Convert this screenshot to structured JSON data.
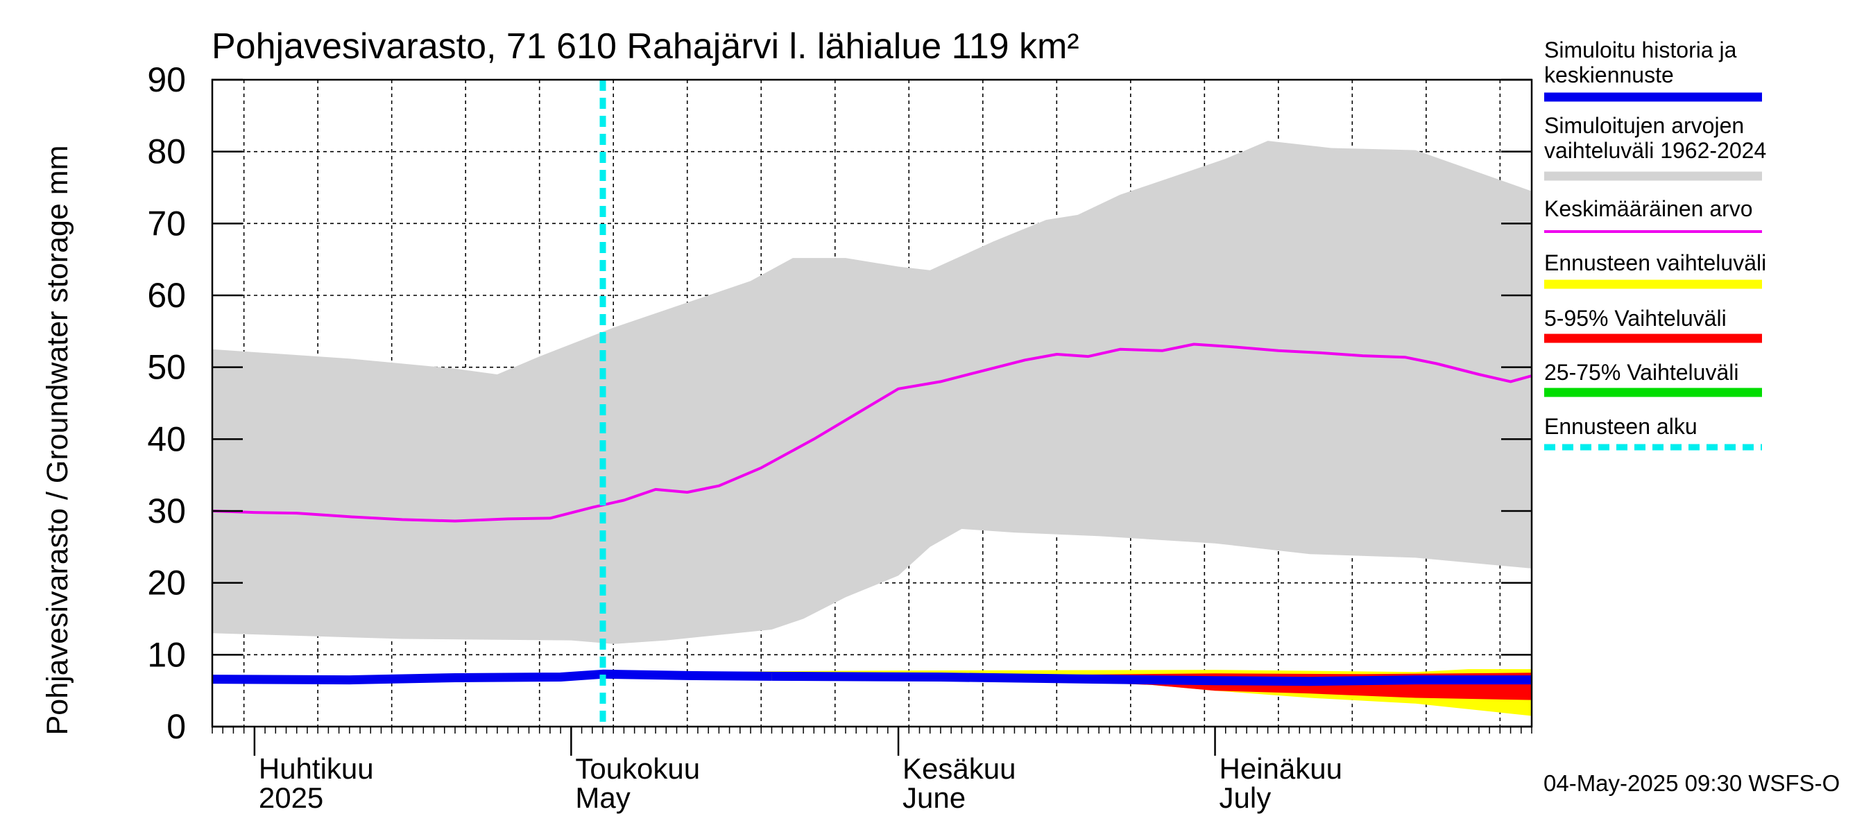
{
  "chart_data": {
    "type": "area",
    "title": "Pohjavesivarasto, 71 610 Rahajärvi l. lähialue 119 km²",
    "ylabel": "Pohjavesivarasto / Groundwater storage   mm",
    "ylim": [
      0,
      90
    ],
    "yticks": [
      0,
      10,
      20,
      30,
      40,
      50,
      60,
      70,
      80,
      90
    ],
    "xlim": [
      "2025-03-28",
      "2025-07-31"
    ],
    "month_labels": [
      {
        "date": "2025-04-01",
        "line1": "Huhtikuu",
        "line2": "2025"
      },
      {
        "date": "2025-05-01",
        "line1": "Toukokuu",
        "line2": "May"
      },
      {
        "date": "2025-06-01",
        "line1": "Kesäkuu",
        "line2": "June"
      },
      {
        "date": "2025-07-01",
        "line1": "Heinäkuu",
        "line2": "July"
      }
    ],
    "grid": true,
    "legend_position": "right",
    "forecast_start": "2025-05-04",
    "footer": "04-May-2025 09:30 WSFS-O",
    "colors": {
      "history": "#0000ee",
      "range": "#d3d3d3",
      "mean": "#ee00ee",
      "forecast_range": "#ffff00",
      "p5_95": "#ff0000",
      "p25_75": "#00dd00",
      "forecast_start": "#00eeee"
    },
    "legend": [
      {
        "key": "history",
        "lines": [
          "Simuloitu historia ja",
          "keskiennuste"
        ]
      },
      {
        "key": "range",
        "lines": [
          "Simuloitujen arvojen",
          "vaihteluväli 1962-2024"
        ]
      },
      {
        "key": "mean",
        "lines": [
          "Keskimääräinen arvo"
        ]
      },
      {
        "key": "forecast_range",
        "lines": [
          "Ennusteen vaihteluväli"
        ]
      },
      {
        "key": "p5_95",
        "lines": [
          "5-95% Vaihteluväli"
        ]
      },
      {
        "key": "p25_75",
        "lines": [
          "25-75% Vaihteluväli"
        ]
      },
      {
        "key": "forecast_start",
        "lines": [
          "Ennusteen alku"
        ]
      }
    ],
    "series": {
      "range_upper": [
        [
          "2025-03-28",
          52.5
        ],
        [
          "2025-04-10",
          51.2
        ],
        [
          "2025-04-20",
          49.8
        ],
        [
          "2025-04-24",
          49.0
        ],
        [
          "2025-04-28",
          51.5
        ],
        [
          "2025-05-05",
          55.5
        ],
        [
          "2025-05-12",
          59.0
        ],
        [
          "2025-05-18",
          62.0
        ],
        [
          "2025-05-22",
          65.2
        ],
        [
          "2025-05-27",
          65.2
        ],
        [
          "2025-06-01",
          64.0
        ],
        [
          "2025-06-04",
          63.5
        ],
        [
          "2025-06-10",
          67.5
        ],
        [
          "2025-06-15",
          70.5
        ],
        [
          "2025-06-18",
          71.2
        ],
        [
          "2025-06-22",
          74.0
        ],
        [
          "2025-06-27",
          76.5
        ],
        [
          "2025-07-02",
          79.0
        ],
        [
          "2025-07-06",
          81.5
        ],
        [
          "2025-07-12",
          80.5
        ],
        [
          "2025-07-20",
          80.2
        ],
        [
          "2025-07-31",
          74.5
        ]
      ],
      "range_lower": [
        [
          "2025-03-28",
          13.0
        ],
        [
          "2025-04-15",
          12.2
        ],
        [
          "2025-05-01",
          12.0
        ],
        [
          "2025-05-05",
          11.5
        ],
        [
          "2025-05-10",
          12.0
        ],
        [
          "2025-05-20",
          13.5
        ],
        [
          "2025-05-23",
          15.0
        ],
        [
          "2025-05-27",
          18.0
        ],
        [
          "2025-06-01",
          21.0
        ],
        [
          "2025-06-04",
          25.0
        ],
        [
          "2025-06-07",
          27.5
        ],
        [
          "2025-06-12",
          27.0
        ],
        [
          "2025-06-20",
          26.5
        ],
        [
          "2025-07-01",
          25.5
        ],
        [
          "2025-07-10",
          24.0
        ],
        [
          "2025-07-20",
          23.5
        ],
        [
          "2025-07-31",
          22.0
        ]
      ],
      "mean": [
        [
          "2025-03-28",
          30.0
        ],
        [
          "2025-04-01",
          29.8
        ],
        [
          "2025-04-05",
          29.7
        ],
        [
          "2025-04-10",
          29.2
        ],
        [
          "2025-04-15",
          28.8
        ],
        [
          "2025-04-20",
          28.6
        ],
        [
          "2025-04-25",
          28.9
        ],
        [
          "2025-04-29",
          29.0
        ],
        [
          "2025-05-03",
          30.5
        ],
        [
          "2025-05-06",
          31.5
        ],
        [
          "2025-05-09",
          33.0
        ],
        [
          "2025-05-12",
          32.6
        ],
        [
          "2025-05-15",
          33.5
        ],
        [
          "2025-05-19",
          36.0
        ],
        [
          "2025-05-24",
          40.0
        ],
        [
          "2025-05-28",
          43.5
        ],
        [
          "2025-06-01",
          47.0
        ],
        [
          "2025-06-05",
          48.0
        ],
        [
          "2025-06-09",
          49.5
        ],
        [
          "2025-06-13",
          51.0
        ],
        [
          "2025-06-16",
          51.8
        ],
        [
          "2025-06-19",
          51.5
        ],
        [
          "2025-06-22",
          52.5
        ],
        [
          "2025-06-26",
          52.3
        ],
        [
          "2025-06-29",
          53.2
        ],
        [
          "2025-07-03",
          52.8
        ],
        [
          "2025-07-07",
          52.3
        ],
        [
          "2025-07-11",
          52.0
        ],
        [
          "2025-07-15",
          51.6
        ],
        [
          "2025-07-19",
          51.4
        ],
        [
          "2025-07-22",
          50.5
        ],
        [
          "2025-07-26",
          49.0
        ],
        [
          "2025-07-29",
          48.0
        ],
        [
          "2025-07-31",
          48.8
        ]
      ],
      "history": [
        [
          "2025-03-28",
          6.6
        ],
        [
          "2025-04-10",
          6.5
        ],
        [
          "2025-04-20",
          6.8
        ],
        [
          "2025-04-30",
          6.9
        ],
        [
          "2025-05-04",
          7.3
        ],
        [
          "2025-05-12",
          7.1
        ],
        [
          "2025-05-20",
          7.0
        ]
      ],
      "median_forecast": [
        [
          "2025-05-20",
          7.0
        ],
        [
          "2025-06-05",
          6.9
        ],
        [
          "2025-06-20",
          6.6
        ],
        [
          "2025-07-01",
          6.4
        ],
        [
          "2025-07-10",
          6.3
        ],
        [
          "2025-07-20",
          6.5
        ],
        [
          "2025-07-31",
          6.5
        ]
      ],
      "forecast_range_upper": [
        [
          "2025-05-10",
          7.6
        ],
        [
          "2025-06-01",
          7.8
        ],
        [
          "2025-07-01",
          7.9
        ],
        [
          "2025-07-20",
          7.6
        ],
        [
          "2025-07-25",
          8.0
        ],
        [
          "2025-07-31",
          8.0
        ]
      ],
      "forecast_range_lower": [
        [
          "2025-05-10",
          6.6
        ],
        [
          "2025-06-01",
          6.5
        ],
        [
          "2025-06-20",
          6.2
        ],
        [
          "2025-06-25",
          5.8
        ],
        [
          "2025-07-01",
          5.0
        ],
        [
          "2025-07-10",
          4.0
        ],
        [
          "2025-07-20",
          3.2
        ],
        [
          "2025-07-31",
          1.5
        ]
      ],
      "p5_95_upper": [
        [
          "2025-06-15",
          7.2
        ],
        [
          "2025-07-01",
          7.4
        ],
        [
          "2025-07-15",
          7.3
        ],
        [
          "2025-07-31",
          7.5
        ]
      ],
      "p5_95_lower": [
        [
          "2025-06-15",
          6.4
        ],
        [
          "2025-06-25",
          5.8
        ],
        [
          "2025-07-01",
          5.0
        ],
        [
          "2025-07-10",
          4.6
        ],
        [
          "2025-07-20",
          4.0
        ],
        [
          "2025-07-31",
          3.7
        ]
      ],
      "p25_75_upper": [
        [
          "2025-06-15",
          6.8
        ],
        [
          "2025-07-31",
          6.9
        ]
      ],
      "p25_75_lower": [
        [
          "2025-06-15",
          6.2
        ],
        [
          "2025-07-31",
          5.9
        ]
      ]
    }
  }
}
